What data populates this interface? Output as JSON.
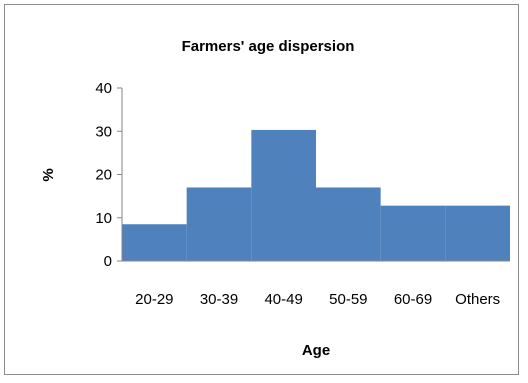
{
  "chart_data": {
    "type": "bar",
    "title": "Farmers' age dispersion",
    "xlabel": "Age",
    "ylabel": "%",
    "categories": [
      "20-29",
      "30-39",
      "40-49",
      "50-59",
      "60-69",
      "Others"
    ],
    "values": [
      8.5,
      17,
      30.3,
      17,
      12.8,
      12.8
    ],
    "ylim": [
      0,
      40
    ],
    "yticks": [
      0,
      10,
      20,
      30,
      40
    ],
    "grid": false,
    "legend": "none",
    "bar_color": "#4f81bd"
  }
}
